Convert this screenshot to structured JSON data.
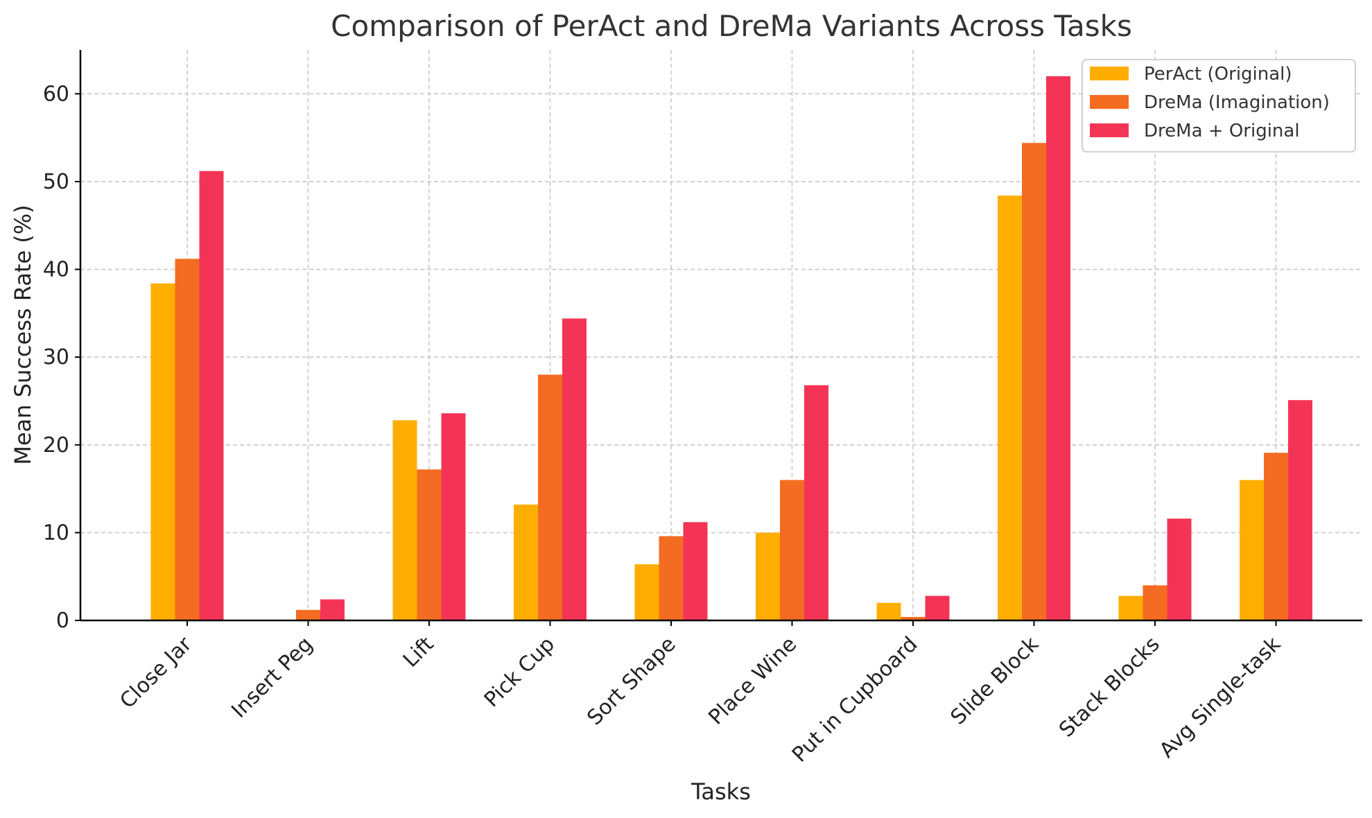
{
  "chart_data": {
    "type": "bar",
    "title": "Comparison of PerAct and DreMa Variants Across Tasks",
    "xlabel": "Tasks",
    "ylabel": "Mean Success Rate (%)",
    "ylim": [
      0,
      65
    ],
    "yticks": [
      0,
      10,
      20,
      30,
      40,
      50,
      60
    ],
    "grid": true,
    "legend_position": "top-right",
    "categories": [
      "Close Jar",
      "Insert Peg",
      "Lift",
      "Pick Cup",
      "Sort Shape",
      "Place Wine",
      "Put in Cupboard",
      "Slide Block",
      "Stack Blocks",
      "Avg Single-task"
    ],
    "series": [
      {
        "name": "PerAct (Original)",
        "color": "#FFAE00",
        "values": [
          38.4,
          0.0,
          22.8,
          13.2,
          6.4,
          10.0,
          2.0,
          48.4,
          2.8,
          16.0
        ]
      },
      {
        "name": "DreMa (Imagination)",
        "color": "#F36C21",
        "values": [
          41.2,
          1.2,
          17.2,
          28.0,
          9.6,
          16.0,
          0.4,
          54.4,
          4.0,
          19.1
        ]
      },
      {
        "name": "DreMa + Original",
        "color": "#F43456",
        "values": [
          51.2,
          2.4,
          23.6,
          34.4,
          11.2,
          26.8,
          2.8,
          62.0,
          11.6,
          25.1
        ]
      }
    ]
  }
}
